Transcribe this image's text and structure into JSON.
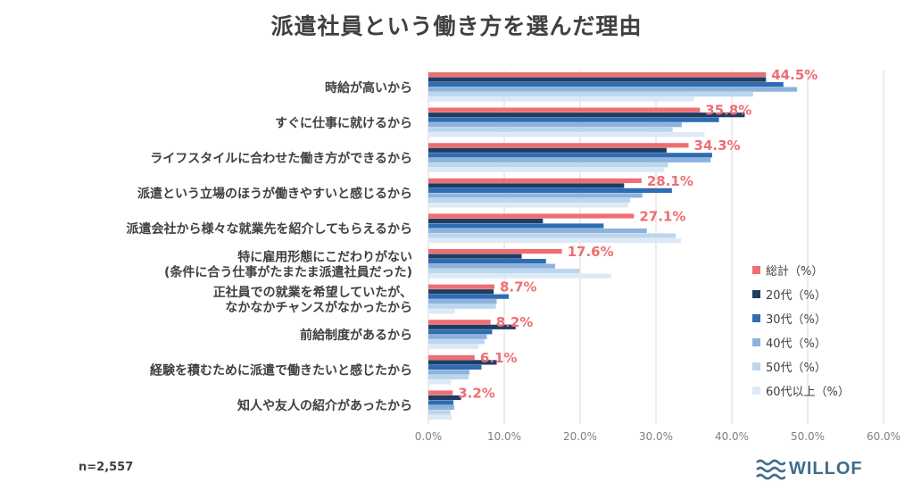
{
  "title": "派遣社員という働き方を選んだ理由",
  "sample_note": "n=2,557",
  "logo_text": "WILLOF",
  "colors": {
    "総計（%）": "#ee6e72",
    "20代（%）": "#1f3d63",
    "30代（%）": "#2e6cb3",
    "40代（%）": "#8db3dd",
    "50代（%）": "#bcd6ee",
    "60代以上（%）": "#dde9f6",
    "total_label": "#ee6e72",
    "grid": "#d9d9d9",
    "logo": "#3f6d8a"
  },
  "chart_data": {
    "type": "bar",
    "orientation": "horizontal",
    "categories": [
      "時給が高いから",
      "すぐに仕事に就けるから",
      "ライフスタイルに合わせた働き方ができるから",
      "派遣という立場のほうが働きやすいと感じるから",
      "派遣会社から様々な就業先を紹介してもらえるから",
      "特に雇用形態にこだわりがない\n(条件に合う仕事がたまたま派遣社員だった)",
      "正社員での就業を希望していたが、\nなかなかチャンスがなかったから",
      "前給制度があるから",
      "経験を積むために派遣で働きたいと感じたから",
      "知人や友人の紹介があったから"
    ],
    "series": [
      {
        "name": "総計（%）",
        "values": [
          44.5,
          35.8,
          34.3,
          28.1,
          27.1,
          17.6,
          8.7,
          8.2,
          6.1,
          3.2
        ]
      },
      {
        "name": "20代（%）",
        "values": [
          44.5,
          41.7,
          31.4,
          25.8,
          15.1,
          12.3,
          8.6,
          11.5,
          9.0,
          4.3
        ]
      },
      {
        "name": "30代（%）",
        "values": [
          46.8,
          38.3,
          37.4,
          32.1,
          23.1,
          15.5,
          10.6,
          8.4,
          7.0,
          3.3
        ]
      },
      {
        "name": "40代（%）",
        "values": [
          48.6,
          33.4,
          37.2,
          28.2,
          28.8,
          16.7,
          9.0,
          7.7,
          5.4,
          3.4
        ]
      },
      {
        "name": "50代（%）",
        "values": [
          42.8,
          32.2,
          31.6,
          26.6,
          32.6,
          19.9,
          8.9,
          7.4,
          5.3,
          2.9
        ]
      },
      {
        "name": "60代以上（%）",
        "values": [
          35.0,
          36.4,
          31.1,
          26.3,
          33.3,
          24.1,
          3.5,
          6.6,
          3.0,
          3.1
        ]
      }
    ],
    "data_labels": [
      "44.5%",
      "35.8%",
      "34.3%",
      "28.1%",
      "27.1%",
      "17.6%",
      "8.7%",
      "8.2%",
      "6.1%",
      "3.2%"
    ],
    "x_ticks": [
      "0.0%",
      "10.0%",
      "20.0%",
      "30.0%",
      "40.0%",
      "50.0%",
      "60.0%"
    ],
    "xlim": [
      0,
      60
    ],
    "grid": true,
    "legend_position": "right"
  }
}
